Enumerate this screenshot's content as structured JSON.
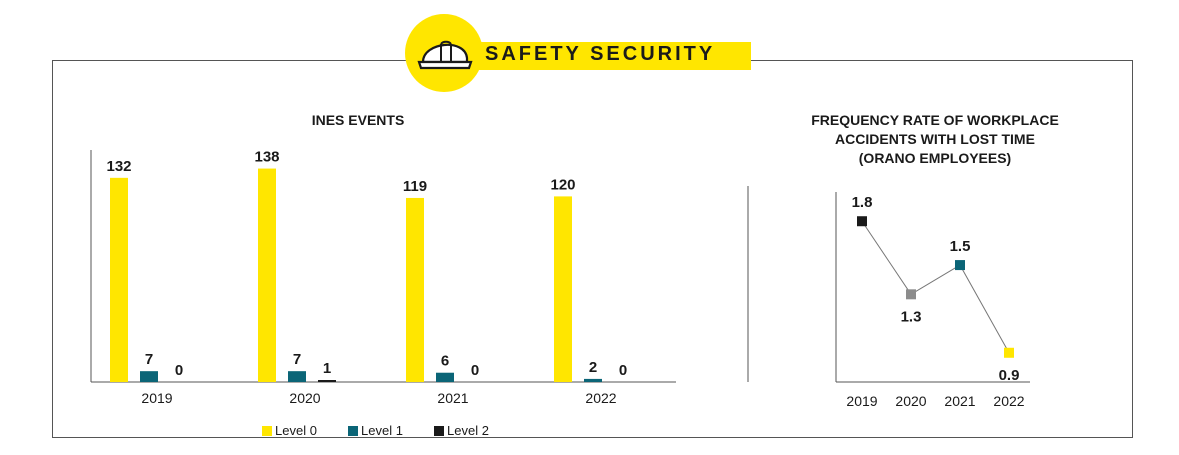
{
  "header": {
    "title": "SAFETY SECURITY",
    "icon": "safety-helmet-icon",
    "accent_color": "#ffe600"
  },
  "chart_data": [
    {
      "type": "bar",
      "title": "INES EVENTS",
      "categories": [
        "2019",
        "2020",
        "2021",
        "2022"
      ],
      "series": [
        {
          "name": "Level 0",
          "values": [
            132,
            138,
            119,
            120
          ],
          "color": "#ffe600"
        },
        {
          "name": "Level 1",
          "values": [
            7,
            7,
            6,
            2
          ],
          "color": "#0b6577"
        },
        {
          "name": "Level 2",
          "values": [
            0,
            1,
            0,
            0
          ],
          "color": "#1a1a1a"
        }
      ],
      "ylim": [
        0,
        150
      ],
      "grid": false,
      "legend": "bottom"
    },
    {
      "type": "line",
      "title": "FREQUENCY RATE OF WORKPLACE ACCIDENTS WITH LOST TIME (ORANO EMPLOYEES)",
      "title_lines": [
        "FREQUENCY RATE OF WORKPLACE",
        "ACCIDENTS WITH LOST TIME",
        "(ORANO EMPLOYEES)"
      ],
      "x": [
        "2019",
        "2020",
        "2021",
        "2022"
      ],
      "values": [
        1.8,
        1.3,
        1.5,
        0.9
      ],
      "point_colors": [
        "#1a1a1a",
        "#8c8c8c",
        "#0b6577",
        "#ffe600"
      ],
      "label_positions": [
        "above",
        "below",
        "above",
        "below"
      ],
      "ylim": [
        0.7,
        2.0
      ],
      "grid": false
    }
  ]
}
